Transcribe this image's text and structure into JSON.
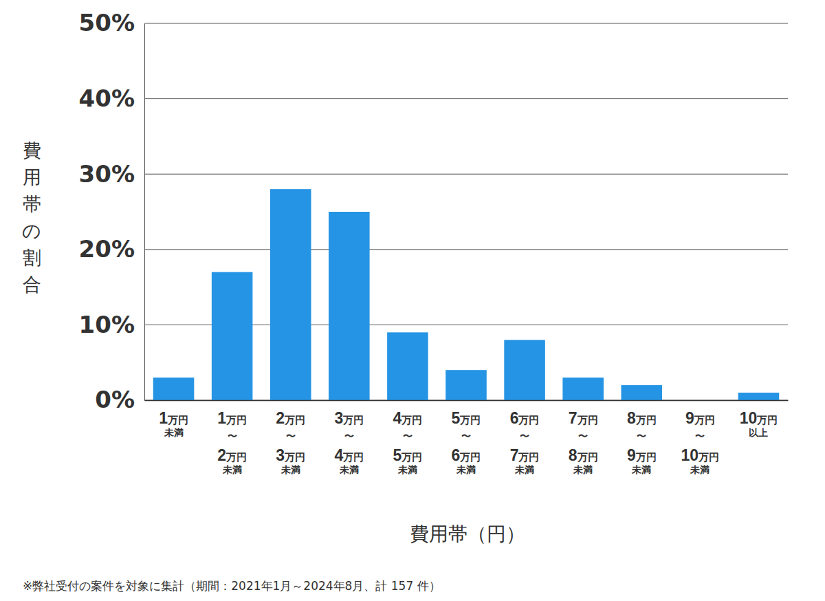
{
  "chart_data": {
    "type": "bar",
    "x_label": "費用帯（円）",
    "y_label": "費用帯の割合",
    "footnote": "※弊社受付の案件を対象に集計（期間：2021年1月～2024年8月、計 157 件）",
    "categories": [
      "1万円未満",
      "1万円〜2万円未満",
      "2万円〜3万円未満",
      "3万円〜4万円未満",
      "4万円〜5万円未満",
      "5万円〜6万円未満",
      "6万円〜7万円未満",
      "7万円〜8万円未満",
      "8万円〜9万円未満",
      "9万円〜10万円未満",
      "10万円以上"
    ],
    "values": [
      3,
      17,
      28,
      25,
      9,
      4,
      8,
      3,
      2,
      0,
      1
    ],
    "color": "#2594e5",
    "ylim": [
      0,
      50
    ],
    "yticks": [
      {
        "value": 0,
        "label": "0%"
      },
      {
        "value": 10,
        "label": "10%"
      },
      {
        "value": 20,
        "label": "20%"
      },
      {
        "value": 30,
        "label": "30%"
      },
      {
        "value": 40,
        "label": "40%"
      },
      {
        "value": 50,
        "label": "50%"
      }
    ],
    "grid": true
  }
}
